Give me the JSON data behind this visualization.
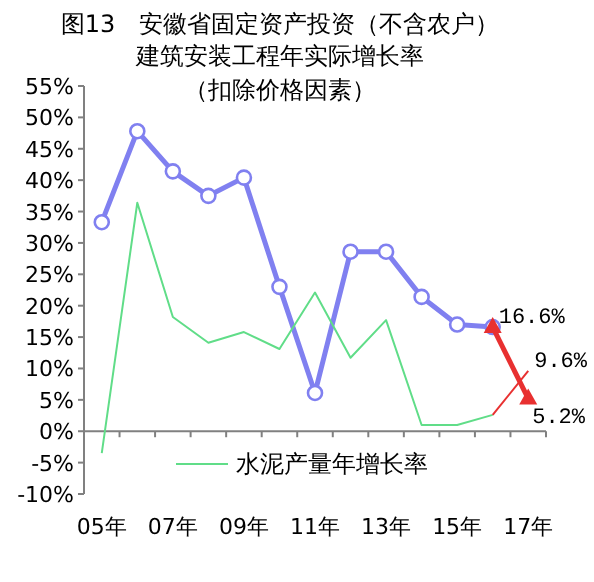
{
  "chart_data": {
    "type": "line",
    "title": "图13　安徽省固定资产投资（不含农户）建筑安装工程年实际增长率",
    "subtitle": "（扣除价格因素）",
    "categories": [
      "05年",
      null,
      "07年",
      null,
      "09年",
      null,
      "11年",
      null,
      "13年",
      null,
      "15年",
      null,
      "17年"
    ],
    "series": [
      {
        "color": "#8080f0",
        "marker": "circle",
        "values": [
          33.3,
          47.8,
          41.4,
          37.5,
          40.4,
          23.0,
          6.1,
          28.6,
          28.6,
          21.4,
          17.0,
          16.6,
          null
        ]
      },
      {
        "color": "#e83030",
        "marker": "triangle",
        "values": [
          null,
          null,
          null,
          null,
          null,
          null,
          null,
          null,
          null,
          null,
          null,
          16.6,
          5.2
        ],
        "value_labels": [
          null,
          null,
          null,
          null,
          null,
          null,
          null,
          null,
          null,
          null,
          null,
          "16.6%",
          "5.2%"
        ]
      },
      {
        "name": "水泥产量年增长率",
        "color": "#60dd88",
        "marker": "none",
        "values": [
          -3.5,
          36.4,
          18.2,
          14.1,
          15.8,
          13.1,
          22.1,
          11.7,
          17.7,
          1.0,
          1.0,
          2.6,
          null
        ]
      },
      {
        "color": "#e83030",
        "marker": "none",
        "values": [
          null,
          null,
          null,
          null,
          null,
          null,
          null,
          null,
          null,
          null,
          null,
          2.6,
          9.6
        ],
        "value_labels": [
          null,
          null,
          null,
          null,
          null,
          null,
          null,
          null,
          null,
          null,
          null,
          null,
          "9.6%"
        ]
      }
    ],
    "ylim": [
      -10,
      55
    ],
    "yticks": [
      {
        "value": -10,
        "label": "-10%"
      },
      {
        "value": -5,
        "label": "-5%"
      },
      {
        "value": 0,
        "label": "0%"
      },
      {
        "value": 5,
        "label": "5%"
      },
      {
        "value": 10,
        "label": "10%"
      },
      {
        "value": 15,
        "label": "15%"
      },
      {
        "value": 20,
        "label": "20%"
      },
      {
        "value": 25,
        "label": "25%"
      },
      {
        "value": 30,
        "label": "30%"
      },
      {
        "value": 35,
        "label": "35%"
      },
      {
        "value": 40,
        "label": "40%"
      },
      {
        "value": 45,
        "label": "45%"
      },
      {
        "value": 50,
        "label": "50%"
      },
      {
        "value": 55,
        "label": "55%"
      }
    ],
    "legend": "bottom"
  }
}
